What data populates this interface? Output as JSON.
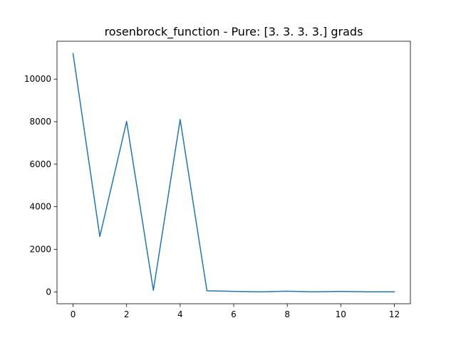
{
  "chart_data": {
    "type": "line",
    "title": "rosenbrock_function - Pure: [3. 3. 3. 3.] grads",
    "xlabel": "",
    "ylabel": "",
    "xlim": [
      -0.6,
      12.6
    ],
    "ylim": [
      -560,
      11780
    ],
    "x_ticks": [
      0,
      2,
      4,
      6,
      8,
      10,
      12
    ],
    "y_ticks": [
      0,
      2000,
      4000,
      6000,
      8000,
      10000
    ],
    "grid": false,
    "legend": "none",
    "series": [
      {
        "x": [
          0,
          1,
          2,
          3,
          4,
          5,
          6,
          7,
          8,
          9,
          10,
          11,
          12
        ],
        "values": [
          11200,
          2600,
          8010,
          70,
          8100,
          50,
          20,
          0,
          30,
          0,
          20,
          0,
          0
        ],
        "color": "#1f77b4"
      }
    ]
  }
}
